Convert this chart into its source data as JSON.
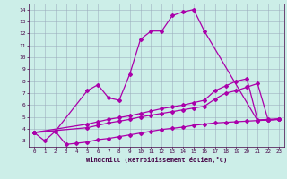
{
  "xlabel": "Windchill (Refroidissement éolien,°C)",
  "bg_color": "#cceee8",
  "line_color": "#aa00aa",
  "grid_color": "#99aabb",
  "xlim": [
    -0.5,
    23.5
  ],
  "ylim": [
    2.5,
    14.5
  ],
  "xticks": [
    0,
    1,
    2,
    3,
    4,
    5,
    6,
    7,
    8,
    9,
    10,
    11,
    12,
    13,
    14,
    15,
    16,
    17,
    18,
    19,
    20,
    21,
    22,
    23
  ],
  "yticks": [
    3,
    4,
    5,
    6,
    7,
    8,
    9,
    10,
    11,
    12,
    13,
    14
  ],
  "line1_x": [
    0,
    1,
    2,
    3,
    4,
    5,
    6,
    7,
    8,
    9,
    10,
    11,
    12,
    13,
    14,
    15,
    16,
    17,
    18,
    19,
    20,
    21,
    22,
    23
  ],
  "line1_y": [
    3.7,
    3.0,
    3.8,
    2.7,
    2.8,
    2.9,
    3.1,
    3.2,
    3.35,
    3.5,
    3.65,
    3.8,
    3.95,
    4.05,
    4.15,
    4.3,
    4.4,
    4.5,
    4.55,
    4.6,
    4.65,
    4.7,
    4.75,
    4.8
  ],
  "line2_x": [
    0,
    2,
    5,
    6,
    7,
    8,
    9,
    10,
    11,
    12,
    13,
    14,
    15,
    16,
    21,
    22,
    23
  ],
  "line2_y": [
    3.7,
    3.8,
    7.2,
    7.7,
    6.6,
    6.4,
    8.6,
    11.5,
    12.2,
    12.2,
    13.5,
    13.8,
    14.0,
    12.2,
    4.7,
    4.75,
    4.8
  ],
  "line3_x": [
    0,
    5,
    6,
    7,
    8,
    9,
    10,
    11,
    12,
    13,
    14,
    15,
    16,
    17,
    18,
    19,
    20,
    21,
    22,
    23
  ],
  "line3_y": [
    3.7,
    4.1,
    4.3,
    4.5,
    4.65,
    4.8,
    5.0,
    5.15,
    5.3,
    5.45,
    5.6,
    5.75,
    5.9,
    6.5,
    7.0,
    7.2,
    7.5,
    7.8,
    4.75,
    4.8
  ],
  "line4_x": [
    0,
    5,
    6,
    7,
    8,
    9,
    10,
    11,
    12,
    13,
    14,
    15,
    16,
    17,
    18,
    19,
    20,
    21,
    22,
    23
  ],
  "line4_y": [
    3.7,
    4.4,
    4.6,
    4.8,
    4.95,
    5.1,
    5.3,
    5.5,
    5.7,
    5.85,
    6.0,
    6.2,
    6.4,
    7.2,
    7.6,
    8.0,
    8.2,
    4.75,
    4.8,
    4.85
  ]
}
